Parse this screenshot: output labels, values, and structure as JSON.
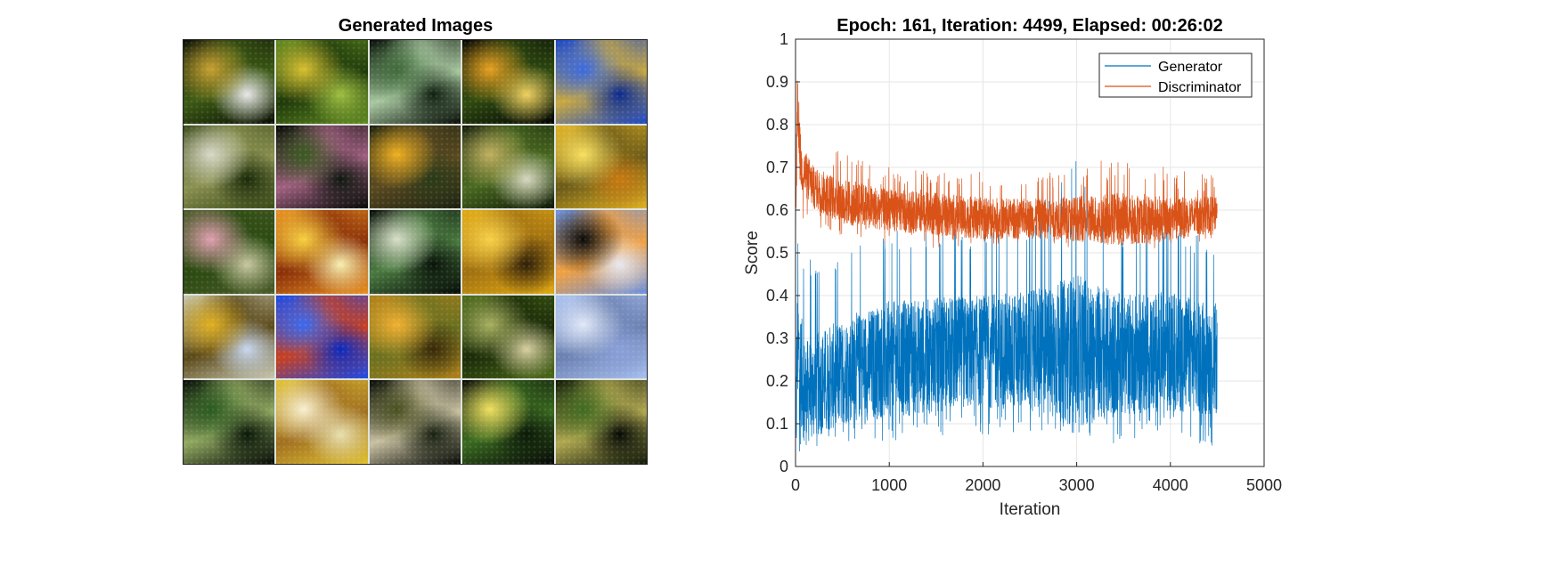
{
  "figure": {
    "left_title": "Generated Images",
    "right_title": "Epoch: 161, Iteration: 4499, Elapsed: 00:26:02"
  },
  "image_grid": {
    "rows": 5,
    "cols": 5,
    "tiles": [
      {
        "colors": [
          "#0b0f05",
          "#c7a030",
          "#3c5a14",
          "#e8e8e8"
        ]
      },
      {
        "colors": [
          "#5f8a20",
          "#d8c030",
          "#1f3a0a",
          "#9fbf40"
        ]
      },
      {
        "colors": [
          "#050b05",
          "#3f6a3a",
          "#a8c8a0",
          "#0f2010"
        ]
      },
      {
        "colors": [
          "#020402",
          "#e8a020",
          "#2f4a10",
          "#f0d060"
        ]
      },
      {
        "colors": [
          "#1a46c8",
          "#3a6ae0",
          "#c8a840",
          "#0a2a90"
        ]
      },
      {
        "colors": [
          "#3a4a18",
          "#d8d8c8",
          "#8a9050",
          "#1a2a08"
        ]
      },
      {
        "colors": [
          "#050805",
          "#3a5a20",
          "#a06080",
          "#101810"
        ]
      },
      {
        "colors": [
          "#1a2010",
          "#f0b020",
          "#5a4a20",
          "#2a3a18"
        ]
      },
      {
        "colors": [
          "#101a08",
          "#c0b060",
          "#4a6a20",
          "#d8d8c0"
        ]
      },
      {
        "colors": [
          "#e0b020",
          "#f8e060",
          "#6a5a18",
          "#c87a10"
        ]
      },
      {
        "colors": [
          "#4a5a28",
          "#e0a0b0",
          "#2a4a10",
          "#c8c8a0"
        ]
      },
      {
        "colors": [
          "#e89020",
          "#f8d040",
          "#8a3008",
          "#f8f0b0"
        ]
      },
      {
        "colors": [
          "#050a05",
          "#d8e0c8",
          "#4a7a40",
          "#0a140a"
        ]
      },
      {
        "colors": [
          "#e0a810",
          "#f8d048",
          "#a07010",
          "#302008"
        ]
      },
      {
        "colors": [
          "#6a90e0",
          "#0a0a08",
          "#f0a040",
          "#e8e8f0"
        ]
      },
      {
        "colors": [
          "#c8c8b0",
          "#e0b020",
          "#5a4818",
          "#c8d8f0"
        ]
      },
      {
        "colors": [
          "#1a4ae8",
          "#3a6af0",
          "#c84020",
          "#0a2ac0"
        ]
      },
      {
        "colors": [
          "#b08018",
          "#f0b030",
          "#6a7020",
          "#382808"
        ]
      },
      {
        "colors": [
          "#4a6a18",
          "#a8b060",
          "#1a2a08",
          "#d8d0a0"
        ]
      },
      {
        "colors": [
          "#a8c0f0",
          "#e0e8f8",
          "#6a80b0",
          "#8aa0d8"
        ]
      },
      {
        "colors": [
          "#050a05",
          "#2a5a20",
          "#90a860",
          "#0a1808"
        ]
      },
      {
        "colors": [
          "#e0c030",
          "#f8f0d0",
          "#a07020",
          "#e8e0b0"
        ]
      },
      {
        "colors": [
          "#050805",
          "#4a5020",
          "#c8c0a0",
          "#182010"
        ]
      },
      {
        "colors": [
          "#060806",
          "#f0e060",
          "#3a6a20",
          "#0c1a08"
        ]
      },
      {
        "colors": [
          "#101808",
          "#406a20",
          "#b0a850",
          "#050a05"
        ]
      }
    ]
  },
  "chart_data": {
    "type": "line",
    "title": "Epoch: 161, Iteration: 4499, Elapsed: 00:26:02",
    "xlabel": "Iteration",
    "ylabel": "Score",
    "xlim": [
      0,
      5000
    ],
    "ylim": [
      0,
      1
    ],
    "xticks": [
      0,
      1000,
      2000,
      3000,
      4000,
      5000
    ],
    "yticks": [
      0,
      0.1,
      0.2,
      0.3,
      0.4,
      0.5,
      0.6,
      0.7,
      0.8,
      0.9,
      1
    ],
    "ytick_labels": [
      "0",
      "0.1",
      "0.2",
      "0.3",
      "0.4",
      "0.5",
      "0.6",
      "0.7",
      "0.8",
      "0.9",
      "1"
    ],
    "grid": true,
    "legend_position": "top-right",
    "series": [
      {
        "name": "Generator",
        "color": "#0072BD",
        "x_end": 4499,
        "envelope": {
          "x": [
            0,
            20,
            100,
            300,
            600,
            1000,
            1500,
            2000,
            2500,
            3000,
            3500,
            4000,
            4499
          ],
          "mean": [
            0.05,
            0.28,
            0.17,
            0.2,
            0.23,
            0.25,
            0.26,
            0.27,
            0.27,
            0.27,
            0.26,
            0.27,
            0.25
          ],
          "low": [
            0.0,
            0.02,
            0.03,
            0.05,
            0.06,
            0.05,
            0.07,
            0.07,
            0.07,
            0.07,
            0.05,
            0.07,
            0.04
          ],
          "high": [
            0.5,
            0.55,
            0.48,
            0.5,
            0.52,
            0.55,
            0.56,
            0.55,
            0.58,
            0.72,
            0.56,
            0.58,
            0.52
          ]
        }
      },
      {
        "name": "Discriminator",
        "color": "#D95319",
        "x_end": 4499,
        "envelope": {
          "x": [
            0,
            20,
            60,
            200,
            500,
            1000,
            1500,
            2000,
            2500,
            3000,
            3500,
            4000,
            4499
          ],
          "mean": [
            0.55,
            0.82,
            0.7,
            0.65,
            0.62,
            0.6,
            0.59,
            0.58,
            0.58,
            0.58,
            0.58,
            0.58,
            0.59
          ],
          "low": [
            0.5,
            0.55,
            0.55,
            0.56,
            0.54,
            0.52,
            0.51,
            0.51,
            0.52,
            0.51,
            0.5,
            0.51,
            0.53
          ],
          "high": [
            0.7,
            0.91,
            0.76,
            0.74,
            0.74,
            0.7,
            0.69,
            0.69,
            0.69,
            0.7,
            0.73,
            0.7,
            0.68
          ]
        }
      }
    ]
  }
}
